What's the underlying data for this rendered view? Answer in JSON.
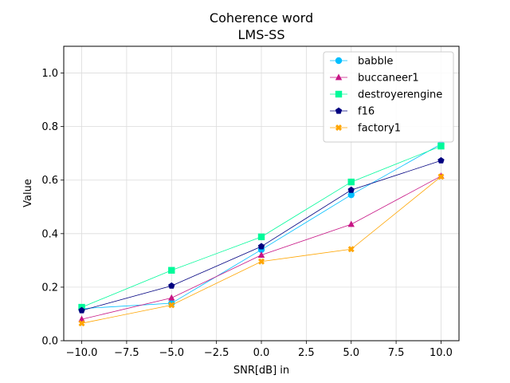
{
  "chart_data": {
    "type": "line",
    "title": "Coherence word",
    "subtitle": "LMS-SS",
    "xlabel": "SNR[dB] in",
    "ylabel": "Value",
    "xlim": [
      -11,
      11
    ],
    "ylim": [
      0,
      1.1
    ],
    "x_ticks": [
      -10,
      -7.5,
      -5,
      -2.5,
      0,
      2.5,
      5,
      7.5,
      10
    ],
    "x_tick_labels": [
      "−10.0",
      "−7.5",
      "−5.0",
      "−2.5",
      "0.0",
      "2.5",
      "5.0",
      "7.5",
      "10.0"
    ],
    "y_ticks": [
      0,
      0.2,
      0.4,
      0.6,
      0.8,
      1.0
    ],
    "y_tick_labels": [
      "0.0",
      "0.2",
      "0.4",
      "0.6",
      "0.8",
      "1.0"
    ],
    "grid": true,
    "legend_position": "top-right",
    "x": [
      -10,
      -5,
      0,
      5,
      10
    ],
    "series": [
      {
        "name": "babble",
        "color": "#00bfff",
        "marker": "circle",
        "values": [
          0.12,
          0.14,
          0.34,
          0.545,
          0.735
        ]
      },
      {
        "name": "buccaneer1",
        "color": "#c71585",
        "marker": "triangle",
        "values": [
          0.08,
          0.16,
          0.32,
          0.435,
          0.615
        ]
      },
      {
        "name": "destroyerengine",
        "color": "#00fa9a",
        "marker": "square",
        "values": [
          0.125,
          0.263,
          0.388,
          0.593,
          0.727
        ]
      },
      {
        "name": "f16",
        "color": "#000080",
        "marker": "pentagon",
        "values": [
          0.113,
          0.205,
          0.352,
          0.563,
          0.673
        ]
      },
      {
        "name": "factory1",
        "color": "#ffa500",
        "marker": "x",
        "values": [
          0.065,
          0.133,
          0.296,
          0.342,
          0.613
        ]
      }
    ]
  }
}
